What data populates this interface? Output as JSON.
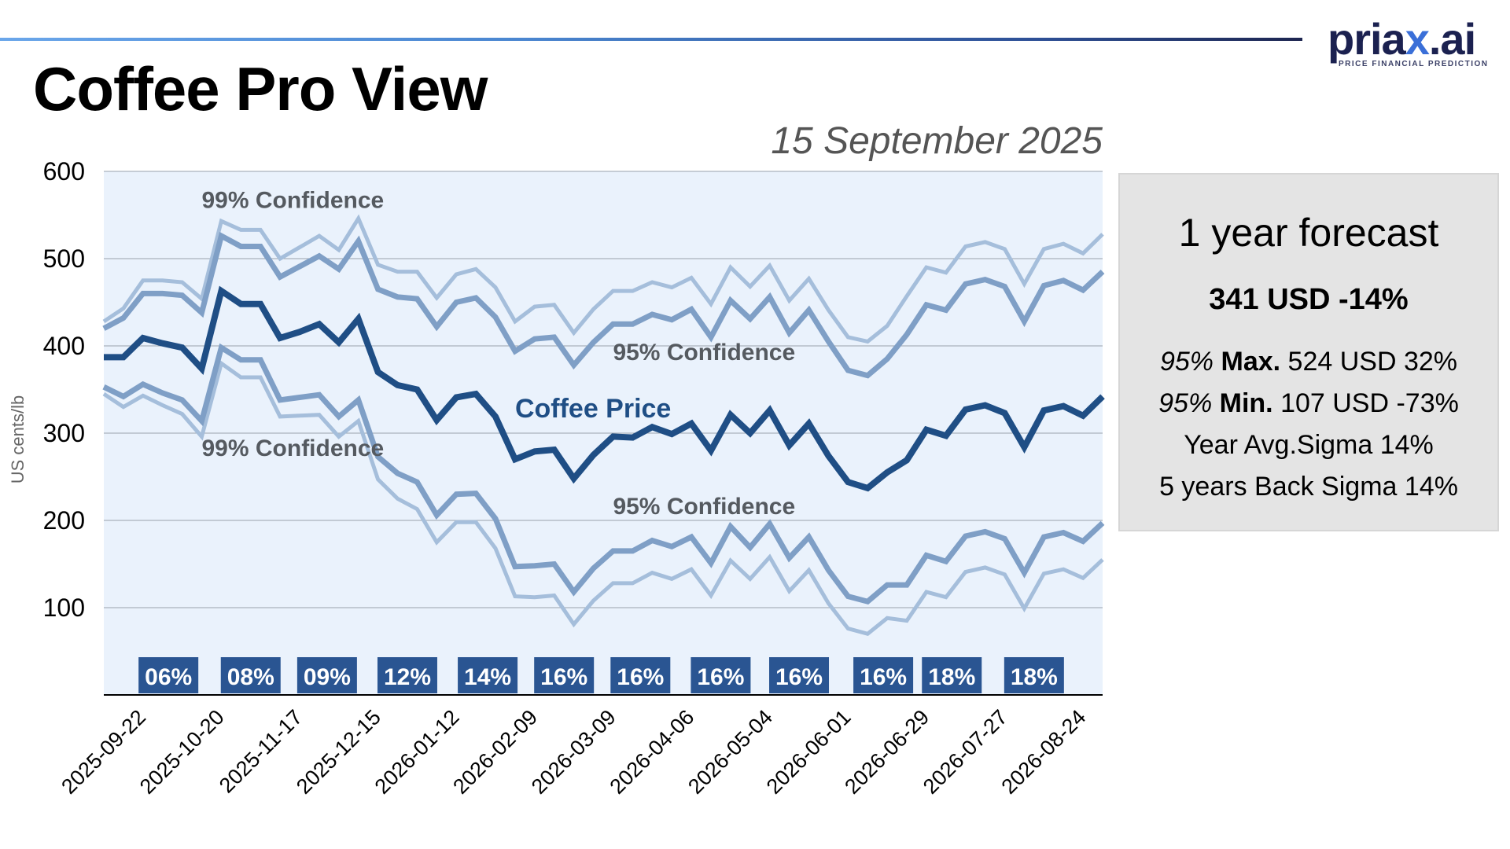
{
  "header": {
    "title": "Coffee Pro View",
    "date": "15 September 2025",
    "logo": {
      "wordmark_prefix": "pria",
      "wordmark_x": "x",
      "wordmark_suffix": ".ai",
      "tagline": "PRICE FINANCIAL PREDICTION"
    }
  },
  "forecast": {
    "title": "1 year forecast",
    "headline": "341 USD -14%",
    "max_prefix": "95%",
    "max_label": "Max.",
    "max_value": "524 USD 32%",
    "min_prefix": "95%",
    "min_label": "Min.",
    "min_value": "107 USD -73%",
    "year_avg_sigma": "Year Avg.Sigma 14%",
    "back_sigma": "5 years Back Sigma 14%"
  },
  "colors": {
    "price": "#1f4e85",
    "band95": "#7f9fc6",
    "band99": "#a5bedb",
    "plot_bg": "#eaf2fc",
    "grid": "#9aa3ad",
    "badge": "#2a5592",
    "label_gray": "#555a60"
  },
  "chart_data": {
    "type": "line",
    "title": "",
    "xlabel": "",
    "ylabel": "US cents/lb",
    "ylim": [
      0,
      600
    ],
    "yticks": [
      100,
      200,
      300,
      400,
      500,
      600
    ],
    "grid": true,
    "x_tick_labels": [
      "2025-09-22",
      "2025-10-20",
      "2025-11-17",
      "2025-12-15",
      "2026-01-12",
      "2026-02-09",
      "2026-03-09",
      "2026-04-06",
      "2026-05-04",
      "2026-06-01",
      "2026-06-29",
      "2026-07-27",
      "2026-08-24"
    ],
    "x_tick_index": [
      1,
      5,
      9,
      13,
      17,
      21,
      25,
      29,
      33,
      37,
      41,
      45,
      49
    ],
    "points": 52,
    "series": [
      {
        "name": "Coffee Price",
        "role": "price",
        "values": [
          387,
          387,
          409,
          403,
          398,
          374,
          463,
          448,
          448,
          409,
          416,
          425,
          404,
          431,
          370,
          355,
          350,
          315,
          341,
          345,
          319,
          270,
          279,
          281,
          248,
          275,
          296,
          295,
          307,
          299,
          311,
          280,
          321,
          300,
          326,
          286,
          311,
          274,
          244,
          237,
          255,
          269,
          304,
          297,
          327,
          332,
          323,
          284,
          326,
          331,
          320,
          342
        ]
      },
      {
        "name": "95% Confidence upper",
        "role": "band95",
        "values": [
          420,
          432,
          460,
          460,
          458,
          438,
          526,
          514,
          514,
          479,
          491,
          503,
          488,
          520,
          465,
          456,
          454,
          422,
          450,
          455,
          433,
          394,
          408,
          410,
          378,
          404,
          425,
          425,
          436,
          430,
          442,
          410,
          452,
          431,
          456,
          415,
          441,
          405,
          372,
          366,
          385,
          413,
          447,
          441,
          471,
          476,
          468,
          428,
          469,
          475,
          464,
          485
        ]
      },
      {
        "name": "95% Confidence lower",
        "role": "band95",
        "values": [
          353,
          342,
          356,
          346,
          338,
          314,
          398,
          384,
          384,
          338,
          341,
          344,
          319,
          338,
          273,
          254,
          244,
          206,
          230,
          231,
          202,
          147,
          148,
          150,
          118,
          145,
          165,
          165,
          177,
          170,
          181,
          151,
          193,
          169,
          196,
          157,
          181,
          143,
          113,
          107,
          126,
          126,
          160,
          153,
          182,
          187,
          179,
          140,
          181,
          186,
          176,
          197
        ]
      },
      {
        "name": "99% Confidence upper",
        "role": "band99",
        "values": [
          428,
          443,
          475,
          475,
          473,
          454,
          543,
          533,
          533,
          500,
          513,
          526,
          510,
          546,
          493,
          485,
          485,
          455,
          482,
          488,
          467,
          428,
          445,
          447,
          415,
          442,
          463,
          463,
          473,
          467,
          478,
          448,
          490,
          468,
          492,
          452,
          477,
          441,
          410,
          405,
          423,
          457,
          490,
          484,
          514,
          519,
          511,
          471,
          511,
          517,
          506,
          528
        ]
      },
      {
        "name": "99% Confidence lower",
        "role": "band99",
        "values": [
          345,
          330,
          343,
          332,
          322,
          296,
          380,
          364,
          364,
          319,
          320,
          321,
          296,
          314,
          247,
          225,
          213,
          175,
          198,
          198,
          168,
          113,
          112,
          114,
          81,
          108,
          128,
          128,
          140,
          133,
          144,
          114,
          154,
          133,
          158,
          119,
          143,
          105,
          76,
          70,
          88,
          85,
          118,
          112,
          141,
          146,
          138,
          99,
          139,
          144,
          134,
          155
        ]
      }
    ],
    "annotations": [
      {
        "text": "99% Confidence",
        "near": "upper-99-band",
        "index": 5,
        "value": 558
      },
      {
        "text": "99% Confidence",
        "near": "lower-99-band",
        "index": 5,
        "value": 274
      },
      {
        "text": "95% Confidence",
        "near": "upper-95-band",
        "index": 26,
        "value": 384
      },
      {
        "text": "95% Confidence",
        "near": "lower-95-band",
        "index": 26,
        "value": 207
      },
      {
        "text": "Coffee Price",
        "near": "price-line",
        "index": 21,
        "value": 318
      }
    ],
    "sigma_badges": [
      {
        "text": "06%",
        "index": 3.3
      },
      {
        "text": "08%",
        "index": 7.5
      },
      {
        "text": "09%",
        "index": 11.4
      },
      {
        "text": "12%",
        "index": 15.5
      },
      {
        "text": "14%",
        "index": 19.6
      },
      {
        "text": "16%",
        "index": 23.5
      },
      {
        "text": "16%",
        "index": 27.4
      },
      {
        "text": "16%",
        "index": 31.5
      },
      {
        "text": "16%",
        "index": 35.5
      },
      {
        "text": "16%",
        "index": 39.8
      },
      {
        "text": "18%",
        "index": 43.3
      },
      {
        "text": "18%",
        "index": 47.5
      }
    ]
  }
}
